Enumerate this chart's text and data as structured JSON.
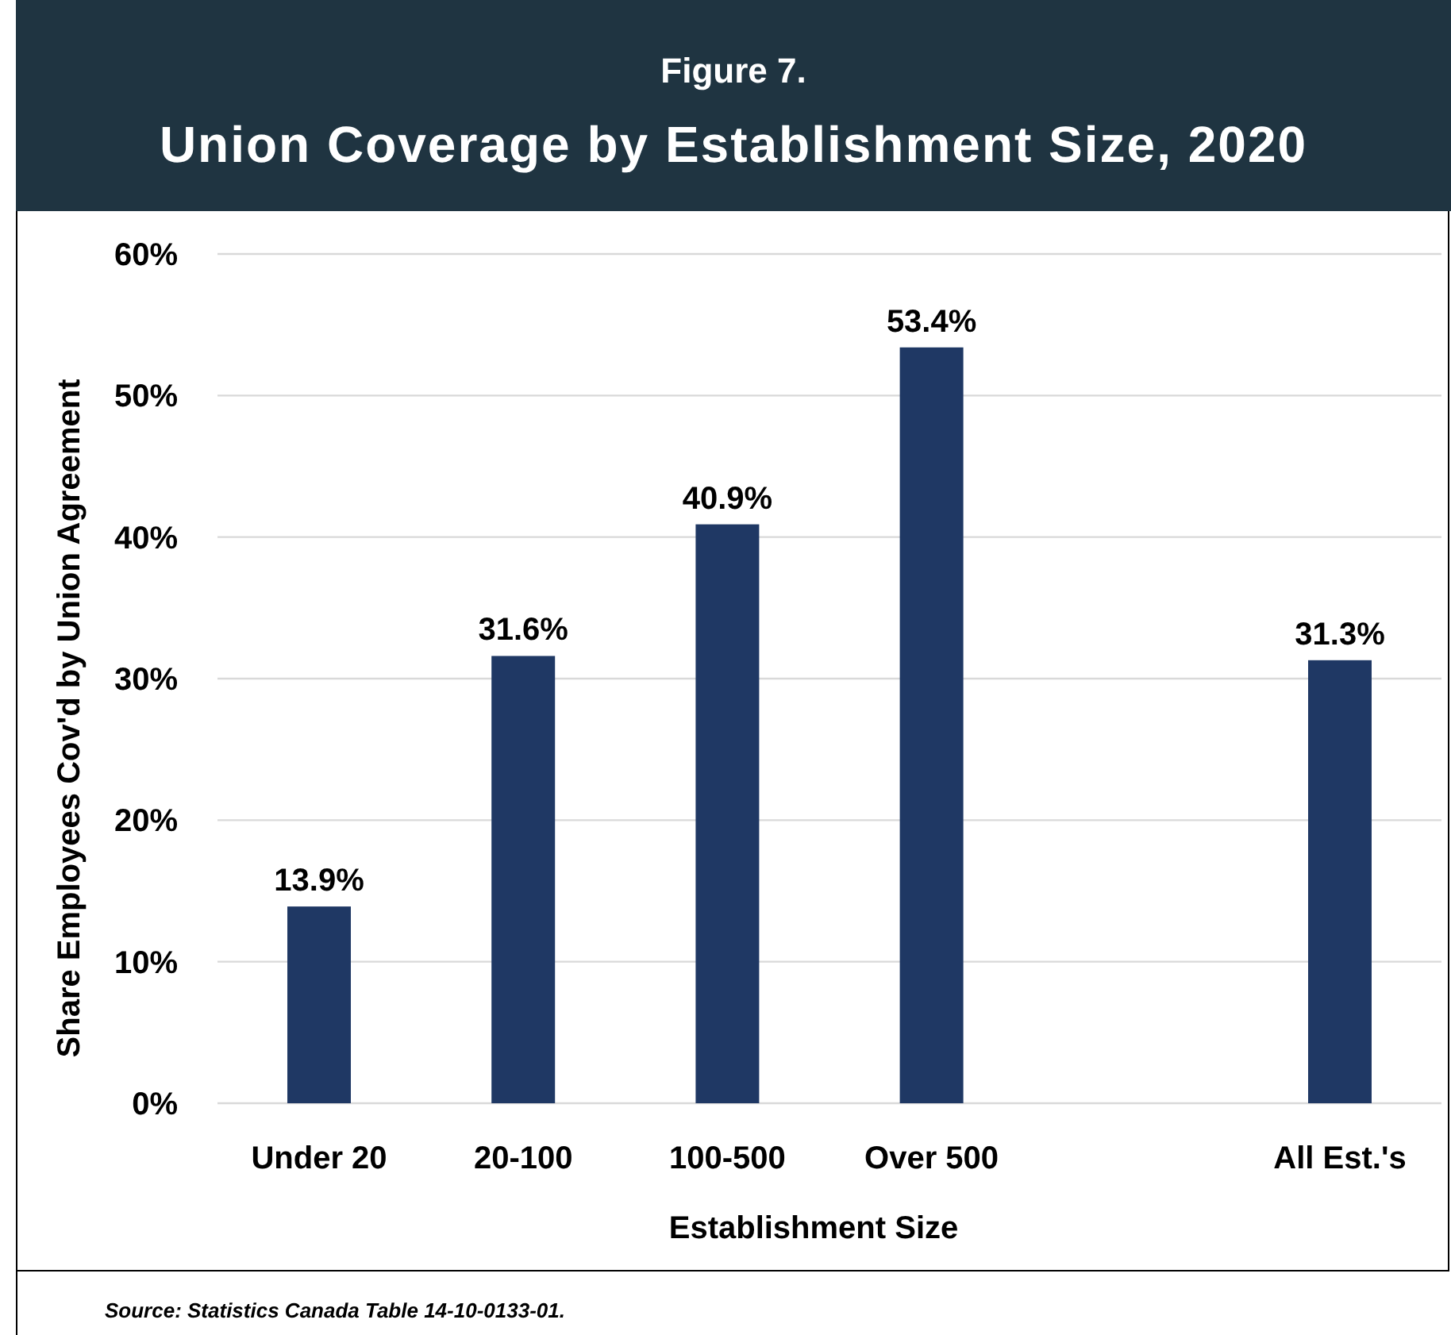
{
  "chart_data": {
    "type": "bar",
    "subtitle": "Figure 7.",
    "title": "Union Coverage by Establishment Size, 2020",
    "xlabel": "Establishment Size",
    "ylabel": "Share Employees Cov'd by Union Agreement",
    "categories": [
      "Under 20",
      "20-100",
      "100-500",
      "Over 500",
      null,
      "All Est.'s"
    ],
    "values": [
      13.9,
      31.6,
      40.9,
      53.4,
      null,
      31.3
    ],
    "value_labels": [
      "13.9%",
      "31.6%",
      "40.9%",
      "53.4%",
      null,
      "31.3%"
    ],
    "color": "#1f3864",
    "ylim": [
      0,
      60
    ],
    "yticks": [
      {
        "value": 0,
        "label": "0%"
      },
      {
        "value": 10,
        "label": "10%"
      },
      {
        "value": 20,
        "label": "20%"
      },
      {
        "value": 30,
        "label": "30%"
      },
      {
        "value": 40,
        "label": "40%"
      },
      {
        "value": 50,
        "label": "50%"
      },
      {
        "value": 60,
        "label": "60%"
      }
    ],
    "grid": "y",
    "annotations": [
      "Source: Statistics Canada Table 14-10-0133-01."
    ]
  }
}
